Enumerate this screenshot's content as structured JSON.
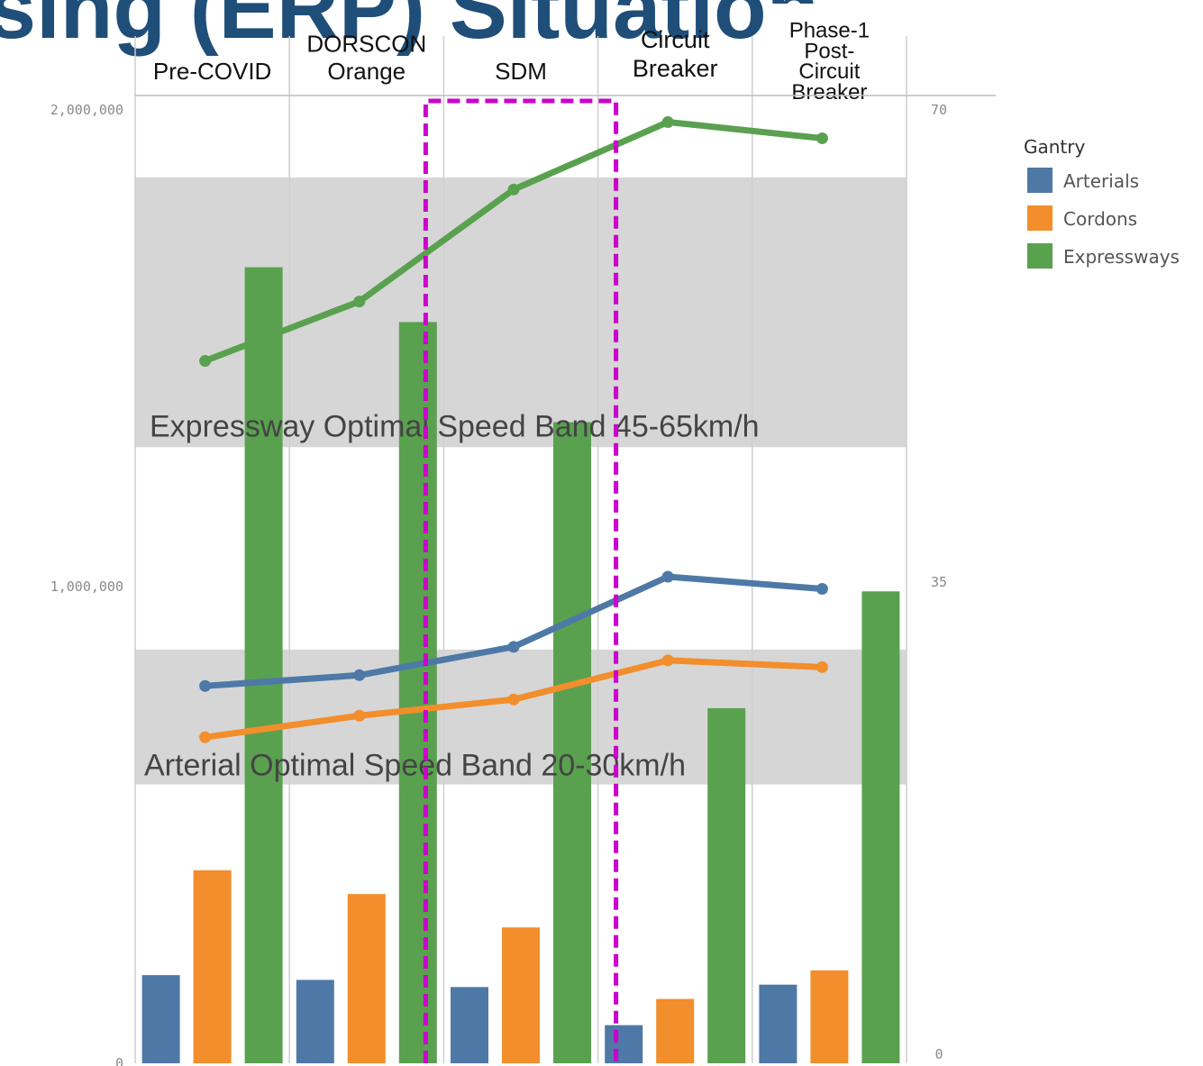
{
  "page_header": {
    "title_fragment": "ising (ERP) Situation"
  },
  "chart_data": {
    "type": "bar",
    "categories": [
      "Pre-COVID",
      "DORSCON Orange",
      "SDM",
      "Circuit Breaker",
      "Phase-1 Post-Circuit Breaker"
    ],
    "category_label_lines": [
      [
        "Pre-COVID"
      ],
      [
        "DORSCON",
        "Orange"
      ],
      [
        "SDM"
      ],
      [
        "Circuit",
        "Breaker"
      ],
      [
        "Phase-1",
        "Post-",
        "Circuit",
        "Breaker"
      ]
    ],
    "left_axis": {
      "ylim": [
        0,
        2000000
      ],
      "ticks": [
        0,
        1000000,
        2000000
      ],
      "tick_labels": [
        "0",
        "1,000,000",
        "2,000,000"
      ]
    },
    "right_axis": {
      "ylim": [
        0,
        70
      ],
      "ticks": [
        0,
        35,
        70
      ],
      "tick_labels": [
        "0",
        "35",
        "70"
      ]
    },
    "bar_series": [
      {
        "name": "Arterials",
        "color": "#4e79a7",
        "values": [
          185000,
          175000,
          160000,
          80000,
          165000
        ]
      },
      {
        "name": "Cordons",
        "color": "#f28e2b",
        "values": [
          405000,
          355000,
          285000,
          135000,
          195000
        ]
      },
      {
        "name": "Expressways",
        "color": "#59a14f",
        "values": [
          1670000,
          1555000,
          1345000,
          745000,
          990000
        ]
      }
    ],
    "line_series": [
      {
        "name": "Arterials",
        "color": "#4e79a7",
        "values": [
          27.3,
          28.1,
          30.2,
          35.4,
          34.5
        ]
      },
      {
        "name": "Cordons",
        "color": "#f28e2b",
        "values": [
          23.5,
          25.1,
          26.3,
          29.2,
          28.7
        ]
      },
      {
        "name": "Expressways",
        "color": "#59a14f",
        "values": [
          51.4,
          55.8,
          64.1,
          69.1,
          67.9
        ]
      }
    ],
    "bands": [
      {
        "label": "Expressway Optimal Speed Band 45-65km/h",
        "range": [
          45,
          65
        ]
      },
      {
        "label": "Arterial Optimal Speed Band 20-30km/h",
        "range": [
          20,
          30
        ]
      }
    ],
    "highlight_category": "SDM",
    "highlight_color": "#cc00cc",
    "legend": {
      "title": "Gantry",
      "position": "right",
      "items": [
        "Arterials",
        "Cordons",
        "Expressways"
      ]
    },
    "grid": "vertical"
  }
}
